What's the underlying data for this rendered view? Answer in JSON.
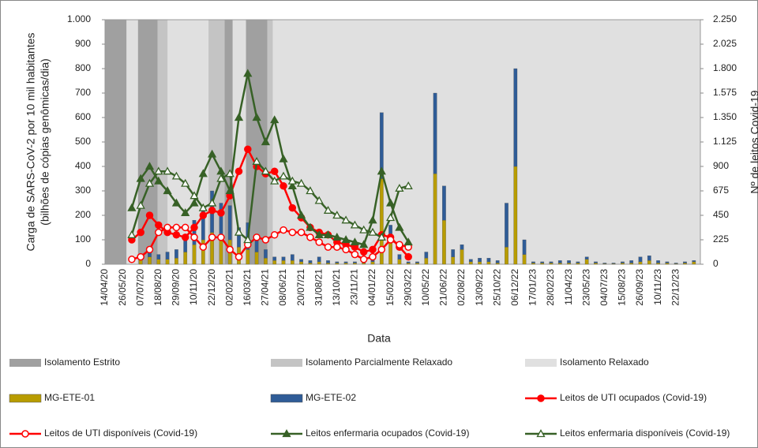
{
  "chart_data": {
    "type": "bar_line",
    "y_label": [
      "Carga de SARS-CoV-2 por 10 mil habitantes",
      "(bilhões de cópias genômicas/dia)"
    ],
    "y2_label": "Nº de leitos Covid-19",
    "x_label": "Data",
    "categories": [
      "14/04/20",
      null,
      "26/05/20",
      null,
      "07/07/20",
      null,
      "18/08/20",
      null,
      "29/09/20",
      null,
      "10/11/20",
      null,
      "22/12/20",
      null,
      "02/02/21",
      null,
      "16/03/21",
      null,
      "27/04/21",
      null,
      "08/06/21",
      null,
      "20/07/21",
      null,
      "31/08/21",
      null,
      "13/10/21",
      null,
      "23/11/21",
      null,
      "04/01/22",
      null,
      "15/02/22",
      null,
      "29/03/22",
      null,
      "10/05/22",
      null,
      "21/06/22",
      null,
      "02/08/22",
      null,
      "13/09/22",
      null,
      "25/10/22",
      null,
      "06/12/22",
      null,
      "17/01/23",
      null,
      "28/02/23",
      null,
      "11/04/23",
      null,
      "23/05/23",
      null,
      "04/07/23",
      null,
      "15/08/23",
      null,
      "26/09/23",
      null,
      "10/11/23",
      null,
      "22/12/23",
      null,
      null
    ],
    "ylim": [
      0,
      1000
    ],
    "yticks": [
      0,
      100,
      200,
      300,
      400,
      500,
      600,
      700,
      800,
      900,
      {
        "value": 1000,
        "label": "1.000"
      }
    ],
    "y2lim": [
      0,
      2250
    ],
    "y2ticks": [
      0,
      225,
      450,
      675,
      900,
      {
        "value": 1125,
        "label": "1.125"
      },
      {
        "value": 1350,
        "label": "1.350"
      },
      {
        "value": 1575,
        "label": "1.575"
      },
      {
        "value": 1800,
        "label": "1.800"
      },
      {
        "value": 2025,
        "label": "2.025"
      },
      {
        "value": 2250,
        "label": "2.250"
      }
    ],
    "phases": [
      {
        "name": "Isolamento Relaxado",
        "color": "#e0e0e0",
        "spans": [
          [
            0,
            66.7
          ]
        ]
      },
      {
        "name": "Isolamento Estrito",
        "color": "#a0a0a0",
        "spans": [
          [
            0,
            2.4
          ],
          [
            3.7,
            5.9
          ],
          [
            13.4,
            14.3
          ],
          [
            15.8,
            18.2
          ]
        ]
      },
      {
        "name": "Isolamento Parcialmente Relaxado",
        "color": "#c4c4c4",
        "spans": [
          [
            5.9,
            7
          ],
          [
            11.6,
            13.4
          ],
          [
            18.2,
            18.8
          ]
        ]
      }
    ],
    "series": [
      {
        "name": "MG-ETE-01",
        "kind": "bar",
        "color": "#b89c00",
        "values": [
          0,
          0,
          0,
          0,
          20,
          30,
          20,
          20,
          25,
          50,
          80,
          100,
          130,
          120,
          100,
          70,
          60,
          50,
          25,
          15,
          15,
          15,
          10,
          5,
          10,
          5,
          5,
          5,
          5,
          5,
          10,
          350,
          90,
          20,
          5,
          5,
          25,
          370,
          180,
          30,
          60,
          10,
          10,
          10,
          5,
          70,
          400,
          40,
          5,
          5,
          5,
          5,
          5,
          5,
          20,
          5,
          2,
          2,
          5,
          5,
          10,
          15,
          5,
          5,
          2,
          5,
          10
        ]
      },
      {
        "name": "MG-ETE-02",
        "kind": "bar",
        "color": "#2f5c97",
        "values": [
          0,
          0,
          0,
          0,
          20,
          30,
          20,
          30,
          35,
          60,
          100,
          120,
          170,
          130,
          140,
          80,
          110,
          70,
          35,
          15,
          15,
          25,
          10,
          10,
          20,
          10,
          5,
          5,
          5,
          5,
          20,
          270,
          70,
          20,
          5,
          5,
          25,
          330,
          140,
          30,
          20,
          10,
          15,
          15,
          10,
          180,
          400,
          60,
          5,
          5,
          5,
          10,
          10,
          5,
          10,
          5,
          3,
          3,
          5,
          10,
          20,
          20,
          10,
          5,
          3,
          5,
          5
        ]
      },
      {
        "name": "Leitos de UTI ocupados (Covid-19)",
        "kind": "line",
        "marker": "circle",
        "filled": true,
        "axis": "y2",
        "color": "#ff0000",
        "values": [
          null,
          null,
          null,
          225,
          293,
          450,
          360,
          293,
          270,
          248,
          338,
          450,
          495,
          473,
          630,
          855,
          1058,
          900,
          833,
          855,
          720,
          518,
          428,
          338,
          293,
          270,
          203,
          180,
          158,
          113,
          135,
          270,
          248,
          158,
          68,
          null,
          null,
          null,
          null,
          null,
          null,
          null,
          null,
          null,
          null,
          null,
          null,
          null,
          null,
          null,
          null,
          null,
          null,
          null,
          null,
          null,
          null,
          null,
          null,
          null,
          null,
          null,
          null,
          null,
          null,
          null,
          null
        ]
      },
      {
        "name": "Leitos de UTI disponíveis (Covid-19)",
        "kind": "line",
        "marker": "circle",
        "filled": false,
        "axis": "y2",
        "color": "#ff0000",
        "values": [
          null,
          null,
          null,
          45,
          68,
          135,
          293,
          338,
          338,
          338,
          248,
          158,
          248,
          248,
          135,
          68,
          180,
          248,
          225,
          270,
          315,
          293,
          293,
          248,
          203,
          158,
          158,
          135,
          90,
          45,
          68,
          135,
          225,
          180,
          158,
          null,
          null,
          null,
          null,
          null,
          null,
          null,
          null,
          null,
          null,
          null,
          null,
          null,
          null,
          null,
          null,
          null,
          null,
          null,
          null,
          null,
          null,
          null,
          null,
          null,
          null,
          null,
          null,
          null,
          null,
          null,
          null
        ]
      },
      {
        "name": "Leitos enfermaria ocupados (Covid-19)",
        "kind": "line",
        "marker": "triangle",
        "filled": true,
        "axis": "y2",
        "color": "#376126",
        "values": [
          null,
          null,
          null,
          518,
          788,
          900,
          765,
          675,
          563,
          473,
          563,
          833,
          1013,
          855,
          675,
          1350,
          1755,
          1350,
          1125,
          1328,
          968,
          720,
          450,
          338,
          270,
          270,
          248,
          225,
          203,
          180,
          405,
          855,
          563,
          338,
          203,
          null,
          null,
          null,
          null,
          null,
          null,
          null,
          null,
          null,
          null,
          null,
          null,
          null,
          null,
          null,
          null,
          null,
          null,
          null,
          null,
          null,
          null,
          null,
          null,
          null,
          null,
          null,
          null,
          null,
          null,
          null,
          null
        ]
      },
      {
        "name": "Leitos enfermaria disponíveis (Covid-19)",
        "kind": "line",
        "marker": "triangle",
        "filled": false,
        "axis": "y2",
        "color": "#376126",
        "values": [
          null,
          null,
          null,
          270,
          540,
          743,
          855,
          855,
          810,
          743,
          630,
          518,
          563,
          788,
          833,
          293,
          225,
          945,
          855,
          765,
          810,
          765,
          743,
          675,
          585,
          495,
          450,
          405,
          360,
          315,
          293,
          248,
          428,
          698,
          720,
          null,
          null,
          null,
          null,
          null,
          null,
          null,
          null,
          null,
          null,
          null,
          null,
          null,
          null,
          null,
          null,
          null,
          null,
          null,
          null,
          null,
          null,
          null,
          null,
          null,
          null,
          null,
          null,
          null,
          null,
          null,
          null
        ]
      }
    ]
  }
}
